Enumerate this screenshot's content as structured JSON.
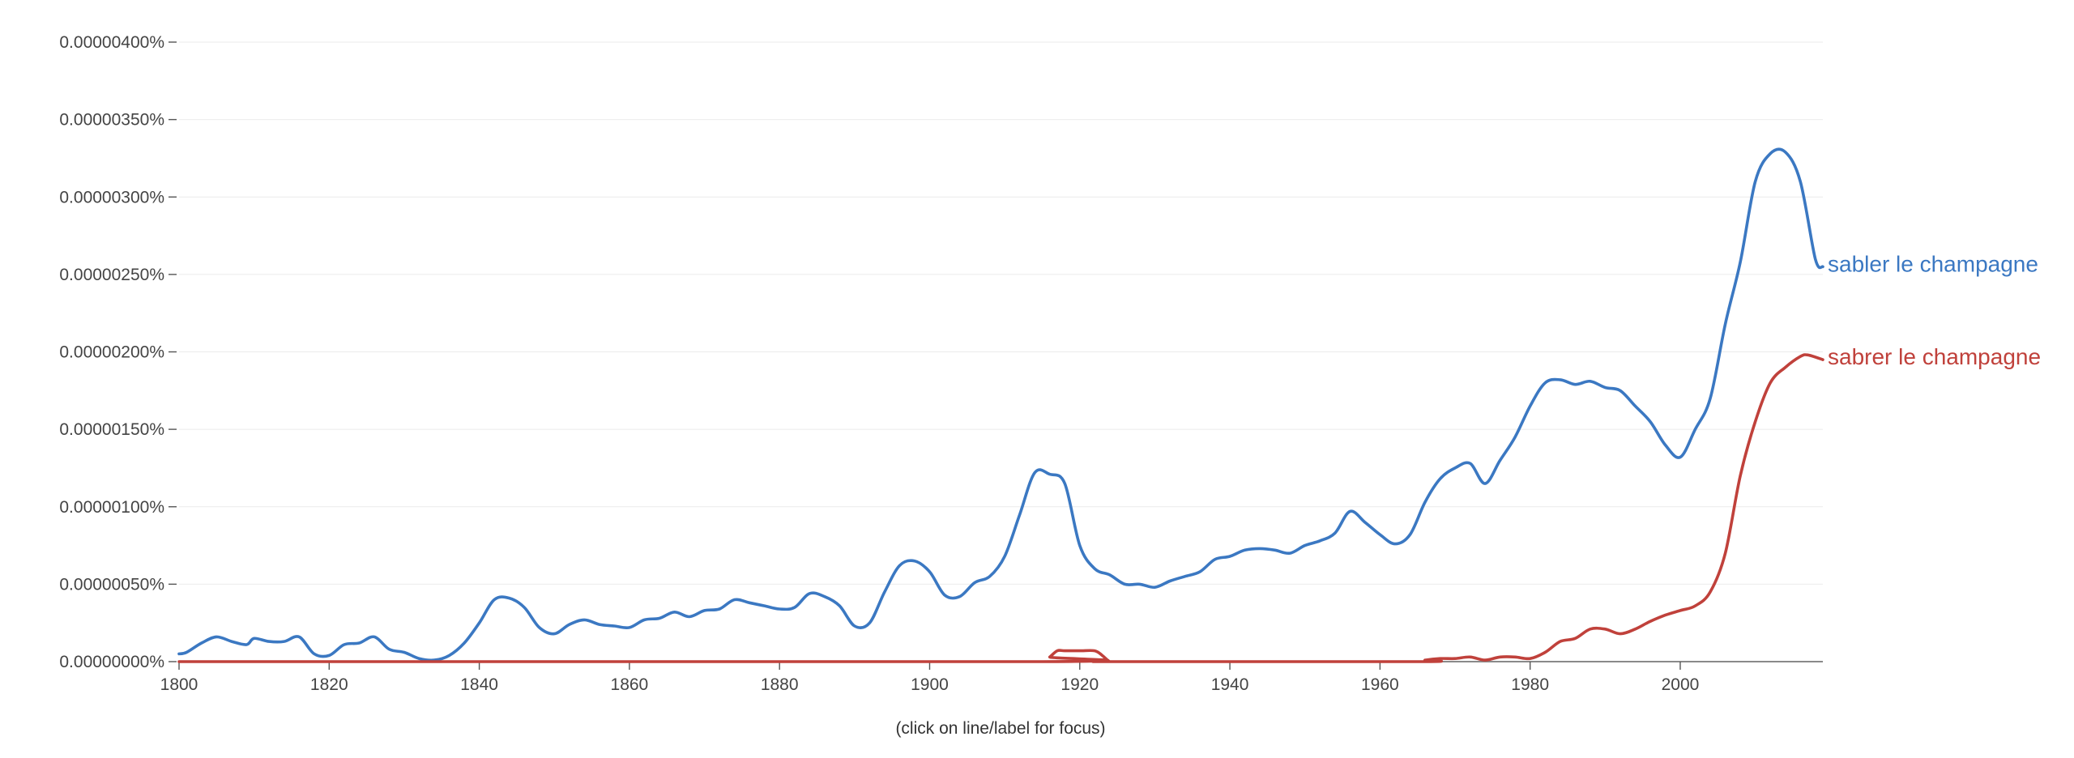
{
  "chart_data": {
    "type": "line",
    "title": "",
    "xlabel": "",
    "ylabel": "",
    "xlim": [
      1800,
      2019
    ],
    "ylim": [
      0,
      4e-06
    ],
    "grid": true,
    "legend": "inline labels at line ends (right)",
    "y_ticks": [
      0,
      5e-07,
      1e-06,
      1.5e-06,
      2e-06,
      2.5e-06,
      3e-06,
      3.5e-06,
      4e-06
    ],
    "y_tick_labels": [
      "0.00000000%",
      "0.00000050%",
      "0.00000100%",
      "0.00000150%",
      "0.00000200%",
      "0.00000250%",
      "0.00000300%",
      "0.00000350%",
      "0.00000400%"
    ],
    "x_ticks": [
      1800,
      1820,
      1840,
      1860,
      1880,
      1900,
      1920,
      1940,
      1960,
      1980,
      2000
    ],
    "x_tick_labels": [
      "1800",
      "1820",
      "1840",
      "1860",
      "1880",
      "1900",
      "1920",
      "1940",
      "1960",
      "1980",
      "2000"
    ],
    "series": [
      {
        "name": "sabler le champagne",
        "color": "#3b78c2",
        "x": [
          1800,
          1801,
          1803,
          1805,
          1807,
          1809,
          1810,
          1812,
          1814,
          1816,
          1818,
          1820,
          1822,
          1824,
          1826,
          1828,
          1830,
          1832,
          1834,
          1836,
          1838,
          1840,
          1842,
          1844,
          1846,
          1848,
          1850,
          1852,
          1854,
          1856,
          1858,
          1860,
          1862,
          1864,
          1866,
          1868,
          1870,
          1872,
          1874,
          1876,
          1878,
          1880,
          1882,
          1884,
          1886,
          1888,
          1890,
          1892,
          1894,
          1896,
          1898,
          1900,
          1902,
          1904,
          1906,
          1908,
          1910,
          1912,
          1914,
          1916,
          1918,
          1920,
          1922,
          1924,
          1926,
          1928,
          1930,
          1932,
          1934,
          1936,
          1938,
          1940,
          1942,
          1944,
          1946,
          1948,
          1950,
          1952,
          1954,
          1956,
          1958,
          1960,
          1962,
          1964,
          1966,
          1968,
          1970,
          1972,
          1974,
          1976,
          1978,
          1980,
          1982,
          1984,
          1986,
          1988,
          1990,
          1992,
          1994,
          1996,
          1998,
          2000,
          2002,
          2004,
          2006,
          2008,
          2010,
          2012,
          2014,
          2016,
          2018,
          2019
        ],
        "y": [
          5e-08,
          6e-08,
          1.2e-07,
          1.6e-07,
          1.3e-07,
          1.1e-07,
          1.5e-07,
          1.3e-07,
          1.3e-07,
          1.6e-07,
          5e-08,
          4e-08,
          1.1e-07,
          1.2e-07,
          1.6e-07,
          8e-08,
          6e-08,
          2e-08,
          1e-08,
          4e-08,
          1.2e-07,
          2.5e-07,
          4e-07,
          4.1e-07,
          3.5e-07,
          2.2e-07,
          1.8e-07,
          2.4e-07,
          2.7e-07,
          2.4e-07,
          2.3e-07,
          2.2e-07,
          2.7e-07,
          2.8e-07,
          3.2e-07,
          2.9e-07,
          3.3e-07,
          3.4e-07,
          4e-07,
          3.8e-07,
          3.6e-07,
          3.4e-07,
          3.5e-07,
          4.4e-07,
          4.2e-07,
          3.6e-07,
          2.3e-07,
          2.5e-07,
          4.5e-07,
          6.2e-07,
          6.5e-07,
          5.8e-07,
          4.3e-07,
          4.2e-07,
          5.1e-07,
          5.5e-07,
          6.8e-07,
          9.5e-07,
          1.22e-06,
          1.21e-06,
          1.15e-06,
          7.5e-07,
          6e-07,
          5.6e-07,
          5e-07,
          5e-07,
          4.8e-07,
          5.2e-07,
          5.5e-07,
          5.8e-07,
          6.6e-07,
          6.8e-07,
          7.2e-07,
          7.3e-07,
          7.2e-07,
          7e-07,
          7.5e-07,
          7.8e-07,
          8.3e-07,
          9.7e-07,
          9e-07,
          8.2e-07,
          7.6e-07,
          8.2e-07,
          1.03e-06,
          1.18e-06,
          1.25e-06,
          1.28e-06,
          1.15e-06,
          1.3e-06,
          1.45e-06,
          1.65e-06,
          1.8e-06,
          1.82e-06,
          1.79e-06,
          1.81e-06,
          1.77e-06,
          1.75e-06,
          1.65e-06,
          1.55e-06,
          1.4e-06,
          1.32e-06,
          1.5e-06,
          1.7e-06,
          2.18e-06,
          2.58e-06,
          3.1e-06,
          3.28e-06,
          3.29e-06,
          3.1e-06,
          2.6e-06,
          2.55e-06
        ]
      },
      {
        "name": "sabrer le champagne",
        "color": "#c0413b",
        "x": [
          1800,
          1915,
          1916,
          1917,
          1918,
          1920,
          1922,
          1923,
          1924,
          1925,
          1965,
          1966,
          1968,
          1970,
          1972,
          1974,
          1976,
          1978,
          1980,
          1982,
          1984,
          1986,
          1988,
          1990,
          1992,
          1994,
          1996,
          1998,
          2000,
          2002,
          2004,
          2006,
          2008,
          2010,
          2012,
          2014,
          2016,
          2017,
          2019
        ],
        "y": [
          0,
          0,
          3e-08,
          7e-08,
          7e-08,
          7e-08,
          7e-08,
          4e-08,
          0,
          0,
          0,
          1e-08,
          2e-08,
          2e-08,
          3e-08,
          1e-08,
          3e-08,
          3e-08,
          2e-08,
          6e-08,
          1.3e-07,
          1.5e-07,
          2.1e-07,
          2.1e-07,
          1.8e-07,
          2.1e-07,
          2.6e-07,
          3e-07,
          3.3e-07,
          3.6e-07,
          4.5e-07,
          7e-07,
          1.2e-06,
          1.55e-06,
          1.8e-06,
          1.9e-06,
          1.97e-06,
          1.98e-06,
          1.95e-06
        ]
      }
    ]
  },
  "footer": {
    "hint": "(click on line/label for focus)"
  }
}
